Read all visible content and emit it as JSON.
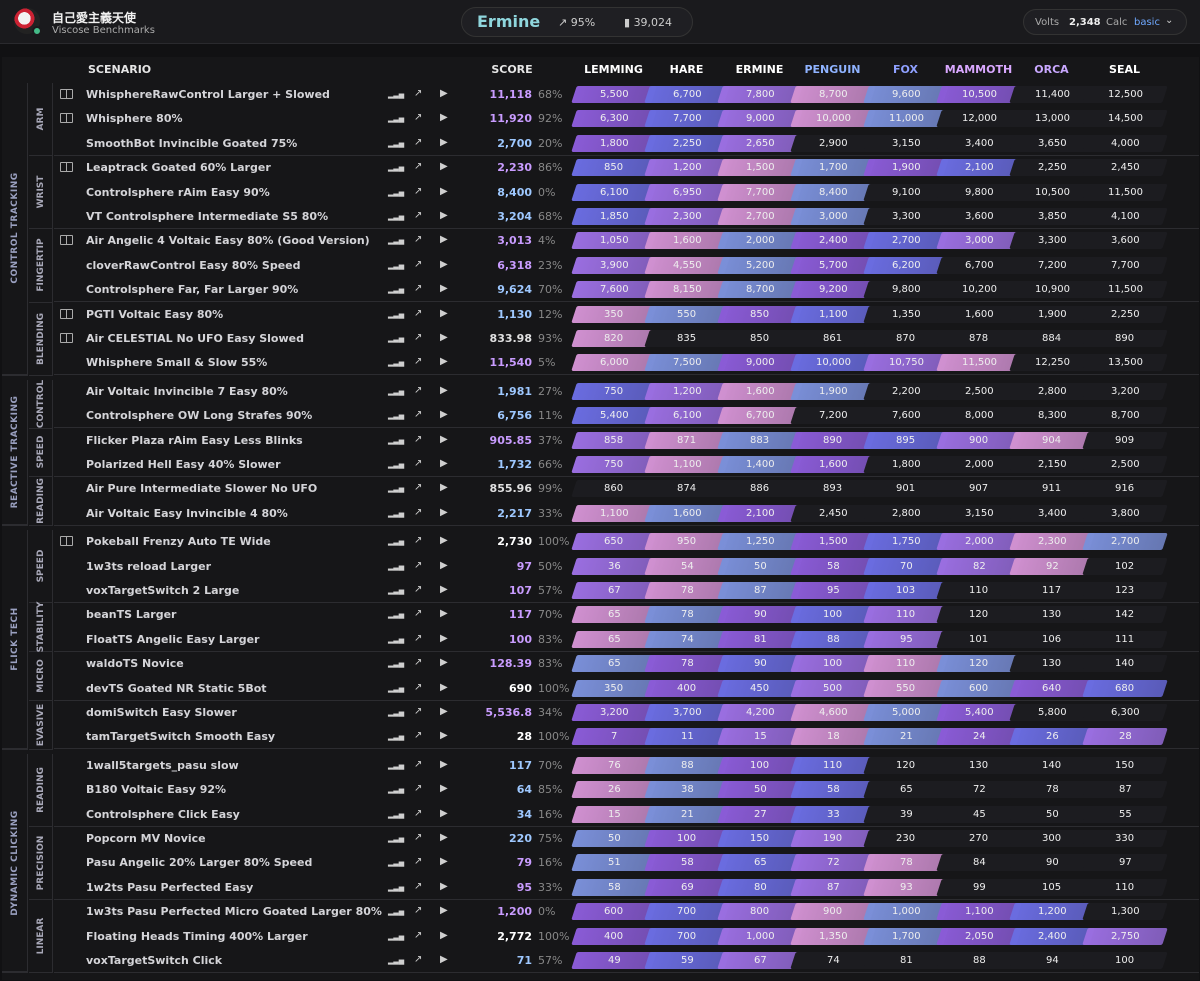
{
  "user": {
    "name": "自己愛主義天使",
    "subtitle": "Viscose Benchmarks"
  },
  "rank": {
    "name": "Ermine",
    "percent": "95%",
    "count": "39,024"
  },
  "volts": {
    "label": "Volts",
    "value": "2,348",
    "calc_label": "Calc",
    "calc_value": "basic"
  },
  "headers": {
    "scenario": "SCENARIO",
    "score": "SCORE"
  },
  "ranks": [
    "LEMMING",
    "HARE",
    "ERMINE",
    "PENGUIN",
    "FOX",
    "MAMMOTH",
    "ORCA",
    "SEAL"
  ],
  "rank_colors": [
    "#ffffff",
    "#ffffff",
    "#ffffff",
    "#8fb3ff",
    "#8fa0ff",
    "#d9a8ff",
    "#c9a8ff",
    "#ffffff"
  ],
  "categories": [
    {
      "name": "CONTROL TRACKING",
      "subs": [
        {
          "name": "ARM",
          "rows": [
            {
              "scenario": "WhisphereRawControl Larger + Slowed",
              "score": "11,118",
              "pct": "68%",
              "book": true,
              "th": [
                "5,500",
                "6,700",
                "7,800",
                "8,700",
                "9,600",
                "10,500",
                "11,400",
                "12,500"
              ]
            },
            {
              "scenario": "Whisphere 80%",
              "score": "11,920",
              "pct": "92%",
              "book": true,
              "th": [
                "6,300",
                "7,700",
                "9,000",
                "10,000",
                "11,000",
                "12,000",
                "13,000",
                "14,500"
              ]
            },
            {
              "scenario": "SmoothBot Invincible Goated 75%",
              "score": "2,700",
              "pct": "20%",
              "book": false,
              "th": [
                "1,800",
                "2,250",
                "2,650",
                "2,900",
                "3,150",
                "3,400",
                "3,650",
                "4,000"
              ]
            }
          ]
        },
        {
          "name": "WRIST",
          "rows": [
            {
              "scenario": "Leaptrack Goated 60% Larger",
              "score": "2,230",
              "pct": "86%",
              "book": true,
              "th": [
                "850",
                "1,200",
                "1,500",
                "1,700",
                "1,900",
                "2,100",
                "2,250",
                "2,450"
              ]
            },
            {
              "scenario": "Controlsphere rAim Easy 90%",
              "score": "8,400",
              "pct": "0%",
              "book": false,
              "th": [
                "6,100",
                "6,950",
                "7,700",
                "8,400",
                "9,100",
                "9,800",
                "10,500",
                "11,500"
              ]
            },
            {
              "scenario": "VT Controlsphere Intermediate S5 80%",
              "score": "3,204",
              "pct": "68%",
              "book": false,
              "th": [
                "1,850",
                "2,300",
                "2,700",
                "3,000",
                "3,300",
                "3,600",
                "3,850",
                "4,100"
              ]
            }
          ]
        },
        {
          "name": "FINGERTIP",
          "rows": [
            {
              "scenario": "Air Angelic 4 Voltaic Easy 80% (Good Version)",
              "score": "3,013",
              "pct": "4%",
              "book": true,
              "th": [
                "1,050",
                "1,600",
                "2,000",
                "2,400",
                "2,700",
                "3,000",
                "3,300",
                "3,600"
              ]
            },
            {
              "scenario": "cloverRawControl Easy 80% Speed",
              "score": "6,318",
              "pct": "23%",
              "book": false,
              "th": [
                "3,900",
                "4,550",
                "5,200",
                "5,700",
                "6,200",
                "6,700",
                "7,200",
                "7,700"
              ]
            },
            {
              "scenario": "Controlsphere Far, Far Larger 90%",
              "score": "9,624",
              "pct": "70%",
              "book": false,
              "th": [
                "7,600",
                "8,150",
                "8,700",
                "9,200",
                "9,800",
                "10,200",
                "10,900",
                "11,500"
              ]
            }
          ]
        },
        {
          "name": "BLENDING",
          "rows": [
            {
              "scenario": "PGTI Voltaic Easy 80%",
              "score": "1,130",
              "pct": "12%",
              "book": true,
              "th": [
                "350",
                "550",
                "850",
                "1,100",
                "1,350",
                "1,600",
                "1,900",
                "2,250"
              ]
            },
            {
              "scenario": "Air CELESTIAL No UFO Easy Slowed",
              "score": "833.98",
              "pct": "93%",
              "book": true,
              "th": [
                "820",
                "835",
                "850",
                "861",
                "870",
                "878",
                "884",
                "890"
              ]
            },
            {
              "scenario": "Whisphere Small & Slow 55%",
              "score": "11,540",
              "pct": "5%",
              "book": false,
              "th": [
                "6,000",
                "7,500",
                "9,000",
                "10,000",
                "10,750",
                "11,500",
                "12,250",
                "13,500"
              ]
            }
          ]
        }
      ]
    },
    {
      "name": "REACTIVE TRACKING",
      "subs": [
        {
          "name": "CONTROL",
          "rows": [
            {
              "scenario": "Air Voltaic Invincible 7 Easy 80%",
              "score": "1,981",
              "pct": "27%",
              "book": false,
              "th": [
                "750",
                "1,200",
                "1,600",
                "1,900",
                "2,200",
                "2,500",
                "2,800",
                "3,200"
              ]
            },
            {
              "scenario": "Controlsphere OW Long Strafes 90%",
              "score": "6,756",
              "pct": "11%",
              "book": false,
              "th": [
                "5,400",
                "6,100",
                "6,700",
                "7,200",
                "7,600",
                "8,000",
                "8,300",
                "8,700"
              ]
            }
          ]
        },
        {
          "name": "SPEED",
          "rows": [
            {
              "scenario": "Flicker Plaza rAim Easy Less Blinks",
              "score": "905.85",
              "pct": "37%",
              "book": false,
              "th": [
                "858",
                "871",
                "883",
                "890",
                "895",
                "900",
                "904",
                "909"
              ]
            },
            {
              "scenario": "Polarized Hell Easy 40% Slower",
              "score": "1,732",
              "pct": "66%",
              "book": false,
              "th": [
                "750",
                "1,100",
                "1,400",
                "1,600",
                "1,800",
                "2,000",
                "2,150",
                "2,500"
              ]
            }
          ]
        },
        {
          "name": "READING",
          "rows": [
            {
              "scenario": "Air Pure Intermediate Slower No UFO",
              "score": "855.96",
              "pct": "99%",
              "book": false,
              "th": [
                "860",
                "874",
                "886",
                "893",
                "901",
                "907",
                "911",
                "916"
              ]
            },
            {
              "scenario": "Air Voltaic Easy Invincible 4 80%",
              "score": "2,217",
              "pct": "33%",
              "book": false,
              "th": [
                "1,100",
                "1,600",
                "2,100",
                "2,450",
                "2,800",
                "3,150",
                "3,400",
                "3,800"
              ]
            }
          ]
        }
      ]
    },
    {
      "name": "FLICK TECH",
      "subs": [
        {
          "name": "SPEED",
          "rows": [
            {
              "scenario": "Pokeball Frenzy Auto TE Wide",
              "score": "2,730",
              "pct": "100%",
              "book": true,
              "th": [
                "650",
                "950",
                "1,250",
                "1,500",
                "1,750",
                "2,000",
                "2,300",
                "2,700"
              ]
            },
            {
              "scenario": "1w3ts reload Larger",
              "score": "97",
              "pct": "50%",
              "book": false,
              "th": [
                "36",
                "54",
                "50",
                "58",
                "70",
                "82",
                "92",
                "102"
              ]
            },
            {
              "scenario": "voxTargetSwitch 2 Large",
              "score": "107",
              "pct": "57%",
              "book": false,
              "th": [
                "67",
                "78",
                "87",
                "95",
                "103",
                "110",
                "117",
                "123"
              ]
            }
          ]
        },
        {
          "name": "STABILITY",
          "rows": [
            {
              "scenario": "beanTS Larger",
              "score": "117",
              "pct": "70%",
              "book": false,
              "th": [
                "65",
                "78",
                "90",
                "100",
                "110",
                "120",
                "130",
                "142"
              ]
            },
            {
              "scenario": "FloatTS Angelic Easy Larger",
              "score": "100",
              "pct": "83%",
              "book": false,
              "th": [
                "65",
                "74",
                "81",
                "88",
                "95",
                "101",
                "106",
                "111"
              ]
            }
          ]
        },
        {
          "name": "MICRO",
          "rows": [
            {
              "scenario": "waldoTS Novice",
              "score": "128.39",
              "pct": "83%",
              "book": false,
              "th": [
                "65",
                "78",
                "90",
                "100",
                "110",
                "120",
                "130",
                "140"
              ]
            },
            {
              "scenario": "devTS Goated NR Static 5Bot",
              "score": "690",
              "pct": "100%",
              "book": false,
              "th": [
                "350",
                "400",
                "450",
                "500",
                "550",
                "600",
                "640",
                "680"
              ]
            }
          ]
        },
        {
          "name": "EVASIVE",
          "rows": [
            {
              "scenario": "domiSwitch Easy Slower",
              "score": "5,536.8",
              "pct": "34%",
              "book": false,
              "th": [
                "3,200",
                "3,700",
                "4,200",
                "4,600",
                "5,000",
                "5,400",
                "5,800",
                "6,300"
              ]
            },
            {
              "scenario": "tamTargetSwitch Smooth Easy",
              "score": "28",
              "pct": "100%",
              "book": false,
              "th": [
                "7",
                "11",
                "15",
                "18",
                "21",
                "24",
                "26",
                "28"
              ]
            }
          ]
        }
      ]
    },
    {
      "name": "DYNAMIC CLICKING",
      "subs": [
        {
          "name": "READING",
          "rows": [
            {
              "scenario": "1wall5targets_pasu slow",
              "score": "117",
              "pct": "70%",
              "book": false,
              "th": [
                "76",
                "88",
                "100",
                "110",
                "120",
                "130",
                "140",
                "150"
              ]
            },
            {
              "scenario": "B180 Voltaic Easy 92%",
              "score": "64",
              "pct": "85%",
              "book": false,
              "th": [
                "26",
                "38",
                "50",
                "58",
                "65",
                "72",
                "78",
                "87"
              ]
            },
            {
              "scenario": "Controlsphere Click Easy",
              "score": "34",
              "pct": "16%",
              "book": false,
              "th": [
                "15",
                "21",
                "27",
                "33",
                "39",
                "45",
                "50",
                "55"
              ]
            }
          ]
        },
        {
          "name": "PRECISION",
          "rows": [
            {
              "scenario": "Popcorn MV Novice",
              "score": "220",
              "pct": "75%",
              "book": false,
              "th": [
                "50",
                "100",
                "150",
                "190",
                "230",
                "270",
                "300",
                "330"
              ]
            },
            {
              "scenario": "Pasu Angelic 20% Larger 80% Speed",
              "score": "79",
              "pct": "16%",
              "book": false,
              "th": [
                "51",
                "58",
                "65",
                "72",
                "78",
                "84",
                "90",
                "97"
              ]
            },
            {
              "scenario": "1w2ts Pasu Perfected Easy",
              "score": "95",
              "pct": "33%",
              "book": false,
              "th": [
                "58",
                "69",
                "80",
                "87",
                "93",
                "99",
                "105",
                "110"
              ]
            }
          ]
        },
        {
          "name": "LINEAR",
          "rows": [
            {
              "scenario": "1w3ts Pasu Perfected Micro Goated Larger 80%",
              "score": "1,200",
              "pct": "0%",
              "book": false,
              "th": [
                "600",
                "700",
                "800",
                "900",
                "1,000",
                "1,100",
                "1,200",
                "1,300"
              ]
            },
            {
              "scenario": "Floating Heads Timing 400% Larger",
              "score": "2,772",
              "pct": "100%",
              "book": false,
              "th": [
                "400",
                "700",
                "1,000",
                "1,350",
                "1,700",
                "2,050",
                "2,400",
                "2,750"
              ]
            },
            {
              "scenario": "voxTargetSwitch Click",
              "score": "71",
              "pct": "57%",
              "book": false,
              "th": [
                "49",
                "59",
                "67",
                "74",
                "81",
                "88",
                "94",
                "100"
              ]
            }
          ]
        }
      ]
    }
  ]
}
